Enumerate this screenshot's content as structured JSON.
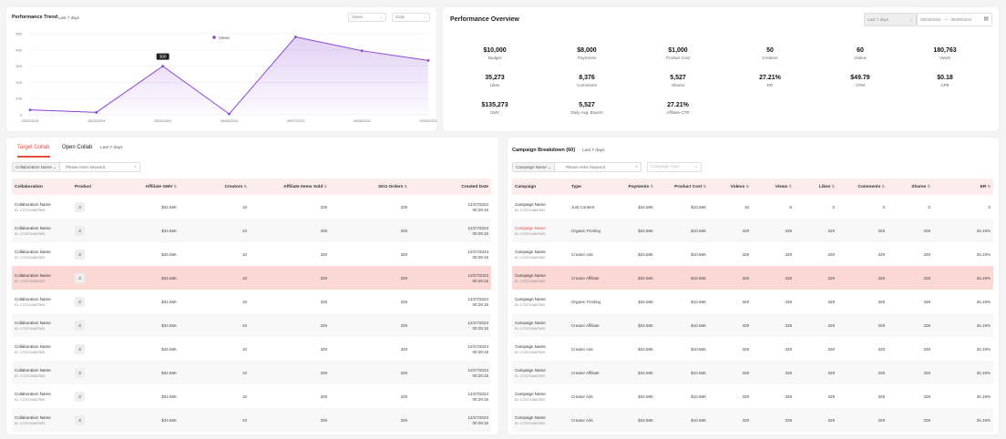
{
  "trend": {
    "title": "Performance Trend",
    "range": "Last 7 days",
    "metric_select": "Views",
    "granularity_select": "Daily",
    "legend": "Views",
    "tooltip": "300"
  },
  "chart_data": {
    "type": "area",
    "x": [
      "05/03/2024",
      "05/04/2024",
      "05/05/2024",
      "05/06/2024",
      "05/07/2024",
      "05/08/2024",
      "05/09/2024"
    ],
    "series": [
      {
        "name": "Views",
        "values": [
          30,
          15,
          300,
          5,
          480,
          395,
          335
        ]
      }
    ],
    "yticks": [
      "0",
      "100",
      "200",
      "300",
      "400",
      "500"
    ],
    "ylim": [
      0,
      500
    ],
    "color": "#8b45d9",
    "grid": true,
    "legend": "top-center"
  },
  "overview": {
    "title": "Performance Overview",
    "range_select": "Last 7 days",
    "date_start": "05/03/2024",
    "date_sep": "—",
    "date_end": "05/09/2024",
    "metrics": [
      {
        "value": "$10,000",
        "label": "Budget"
      },
      {
        "value": "$8,000",
        "label": "Payments"
      },
      {
        "value": "$1,000",
        "label": "Product Cost"
      },
      {
        "value": "50",
        "label": "Creators"
      },
      {
        "value": "60",
        "label": "Videos"
      },
      {
        "value": "180,763",
        "label": "Views"
      },
      {
        "value": "35,273",
        "label": "Likes"
      },
      {
        "value": "8,376",
        "label": "Comments"
      },
      {
        "value": "5,527",
        "label": "Shares"
      },
      {
        "value": "27.21%",
        "label": "ER"
      },
      {
        "value": "$49.79",
        "label": "CPM"
      },
      {
        "value": "$0.18",
        "label": "CPE"
      },
      {
        "value": "$135,273",
        "label": "GMV"
      },
      {
        "value": "5,527",
        "label": "Daily Avg. Buyers"
      },
      {
        "value": "27.21%",
        "label": "Affiliate CTR"
      }
    ]
  },
  "collab": {
    "tabs": [
      "Target Collab",
      "Open Collab"
    ],
    "range": "Last 7 days",
    "search_prefix": "Collaboration Name",
    "search_placeholder": "Please enter keyword",
    "headers": [
      "Collaboration",
      "Product",
      "Affiliate GMV",
      "Creators",
      "Affiliate Items Sold",
      "SKU Orders",
      "Created Date"
    ],
    "rows": [
      {
        "name": "Collaboration Name",
        "id": "ID: 1723744847600",
        "product": "3",
        "gmv": "$34.56K",
        "creators": "10",
        "items": "329",
        "orders": "329",
        "date": "12/27/2023",
        "time": "00:29:15"
      },
      {
        "name": "Collaboration Name",
        "id": "ID: 1723744847600",
        "product": "3",
        "gmv": "$34.56K",
        "creators": "10",
        "items": "329",
        "orders": "329",
        "date": "12/27/2023",
        "time": "00:29:15"
      },
      {
        "name": "Collaboration Name",
        "id": "ID: 1723744847600",
        "product": "3",
        "gmv": "$34.56K",
        "creators": "10",
        "items": "329",
        "orders": "329",
        "date": "12/27/2023",
        "time": "00:29:15"
      },
      {
        "name": "Collaboration Name",
        "id": "ID: 1723744847600",
        "product": "3",
        "gmv": "$34.56K",
        "creators": "10",
        "items": "329",
        "orders": "329",
        "date": "12/27/2023",
        "time": "00:29:15"
      },
      {
        "name": "Collaboration Name",
        "id": "ID: 1723744847600",
        "product": "3",
        "gmv": "$34.56K",
        "creators": "10",
        "items": "329",
        "orders": "329",
        "date": "12/27/2023",
        "time": "00:29:15"
      },
      {
        "name": "Collaboration Name",
        "id": "ID: 1723744847600",
        "product": "3",
        "gmv": "$34.56K",
        "creators": "10",
        "items": "329",
        "orders": "329",
        "date": "12/27/2023",
        "time": "00:29:15"
      },
      {
        "name": "Collaboration Name",
        "id": "ID: 1723744847600",
        "product": "3",
        "gmv": "$34.56K",
        "creators": "10",
        "items": "329",
        "orders": "329",
        "date": "12/27/2023",
        "time": "00:29:15"
      },
      {
        "name": "Collaboration Name",
        "id": "ID: 1723744847600",
        "product": "3",
        "gmv": "$34.56K",
        "creators": "10",
        "items": "329",
        "orders": "329",
        "date": "12/27/2023",
        "time": "00:29:15"
      },
      {
        "name": "Collaboration Name",
        "id": "ID: 1723744847600",
        "product": "3",
        "gmv": "$34.56K",
        "creators": "10",
        "items": "329",
        "orders": "329",
        "date": "12/27/2023",
        "time": "00:29:15"
      },
      {
        "name": "Collaboration Name",
        "id": "ID: 1723744847600",
        "product": "3",
        "gmv": "$34.56K",
        "creators": "10",
        "items": "329",
        "orders": "329",
        "date": "12/27/2023",
        "time": "00:29:15"
      }
    ]
  },
  "campaign": {
    "title": "Campaign Breakdown (60)",
    "range": "Last 7 days",
    "search_prefix": "Campaign Name",
    "search_placeholder": "Please enter keyword",
    "type_select": "Campaign Type",
    "headers": [
      "Campaign",
      "Type",
      "Payments",
      "Product Cost",
      "Videos",
      "Views",
      "Likes",
      "Comments",
      "Shares",
      "ER"
    ],
    "rows": [
      {
        "name": "Campaign Name",
        "id": "ID: 1723744847600",
        "type": "Just Content",
        "payments": "$34.56K",
        "cost": "$10.56K",
        "videos": "10",
        "views": "5",
        "likes": "0",
        "comments": "0",
        "shares": "0",
        "er": "0"
      },
      {
        "name": "Campaign Name",
        "id": "ID: 1723744847600",
        "type": "Organic Posting",
        "payments": "$34.56K",
        "cost": "$10.56K",
        "videos": "329",
        "views": "329",
        "likes": "329",
        "comments": "329",
        "shares": "329",
        "er": "26.19%"
      },
      {
        "name": "Campaign Name",
        "id": "ID: 1723744847600",
        "type": "Creator Ads",
        "payments": "$34.56K",
        "cost": "$10.56K",
        "videos": "329",
        "views": "329",
        "likes": "329",
        "comments": "329",
        "shares": "329",
        "er": "26.19%"
      },
      {
        "name": "Campaign Name",
        "id": "ID: 1723744847600",
        "type": "Creator Affiliate",
        "payments": "$34.56K",
        "cost": "$10.56K",
        "videos": "329",
        "views": "329",
        "likes": "329",
        "comments": "329",
        "shares": "329",
        "er": "26.19%"
      },
      {
        "name": "Campaign Name",
        "id": "ID: 1723744847600",
        "type": "Organic Posting",
        "payments": "$34.56K",
        "cost": "$10.56K",
        "videos": "329",
        "views": "329",
        "likes": "329",
        "comments": "329",
        "shares": "329",
        "er": "26.19%"
      },
      {
        "name": "Campaign Name",
        "id": "ID: 1723744847600",
        "type": "Creator Affiliate",
        "payments": "$34.56K",
        "cost": "$10.56K",
        "videos": "329",
        "views": "329",
        "likes": "329",
        "comments": "329",
        "shares": "329",
        "er": "26.19%"
      },
      {
        "name": "Campaign Name",
        "id": "ID: 1723744847600",
        "type": "Creator Ads",
        "payments": "$34.56K",
        "cost": "$10.56K",
        "videos": "329",
        "views": "329",
        "likes": "329",
        "comments": "329",
        "shares": "329",
        "er": "26.19%"
      },
      {
        "name": "Campaign Name",
        "id": "ID: 1723744847600",
        "type": "Creator Affiliate",
        "payments": "$34.56K",
        "cost": "$10.56K",
        "videos": "329",
        "views": "329",
        "likes": "329",
        "comments": "329",
        "shares": "329",
        "er": "26.19%"
      },
      {
        "name": "Campaign Name",
        "id": "ID: 1723744847600",
        "type": "Creator Ads",
        "payments": "$34.56K",
        "cost": "$10.56K",
        "videos": "329",
        "views": "329",
        "likes": "329",
        "comments": "329",
        "shares": "329",
        "er": "26.19%"
      },
      {
        "name": "Campaign Name",
        "id": "ID: 1723744847600",
        "type": "Creator Ads",
        "payments": "$34.56K",
        "cost": "$10.56K",
        "videos": "329",
        "views": "329",
        "likes": "329",
        "comments": "329",
        "shares": "329",
        "er": "26.19%"
      }
    ]
  }
}
